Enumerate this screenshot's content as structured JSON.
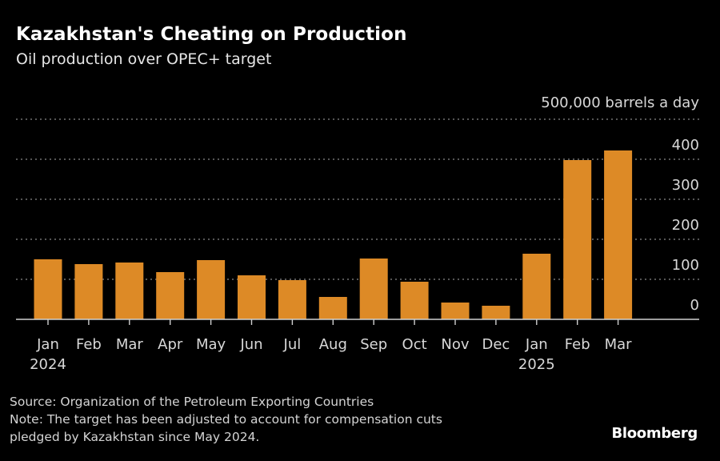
{
  "header": {
    "title": "Kazakhstan's Cheating on Production",
    "subtitle": "Oil production over OPEC+ target"
  },
  "footer": {
    "source": "Source: Organization of the Petroleum Exporting Countries",
    "note_line1": "Note: The target has been adjusted to account for compensation cuts",
    "note_line2": "pledged by Kazakhstan since May 2024.",
    "brand": "Bloomberg"
  },
  "colors": {
    "background": "#000000",
    "bar": "#dd8a26",
    "gridline": "#8a8a8a",
    "axis": "#cfcfcf",
    "text": "#d8d8d8"
  },
  "chart_data": {
    "type": "bar",
    "title": "Kazakhstan's Cheating on Production",
    "subtitle": "Oil production over OPEC+ target",
    "unit_label": "500,000 barrels a day",
    "xlabel": "",
    "ylabel": "barrels a day",
    "ylim": [
      0,
      500
    ],
    "yticks": [
      0,
      100,
      200,
      300,
      400
    ],
    "ytick_labels": [
      "0",
      "100",
      "200",
      "300",
      "400"
    ],
    "grid": true,
    "y_axis_position": "right",
    "categories": [
      "Jan",
      "Feb",
      "Mar",
      "Apr",
      "May",
      "Jun",
      "Jul",
      "Aug",
      "Sep",
      "Oct",
      "Nov",
      "Dec",
      "Jan",
      "Feb",
      "Mar"
    ],
    "year_labels": [
      {
        "index": 0,
        "label": "2024"
      },
      {
        "index": 12,
        "label": "2025"
      }
    ],
    "values": [
      150,
      138,
      142,
      118,
      148,
      110,
      98,
      56,
      152,
      94,
      42,
      34,
      164,
      398,
      422
    ]
  }
}
